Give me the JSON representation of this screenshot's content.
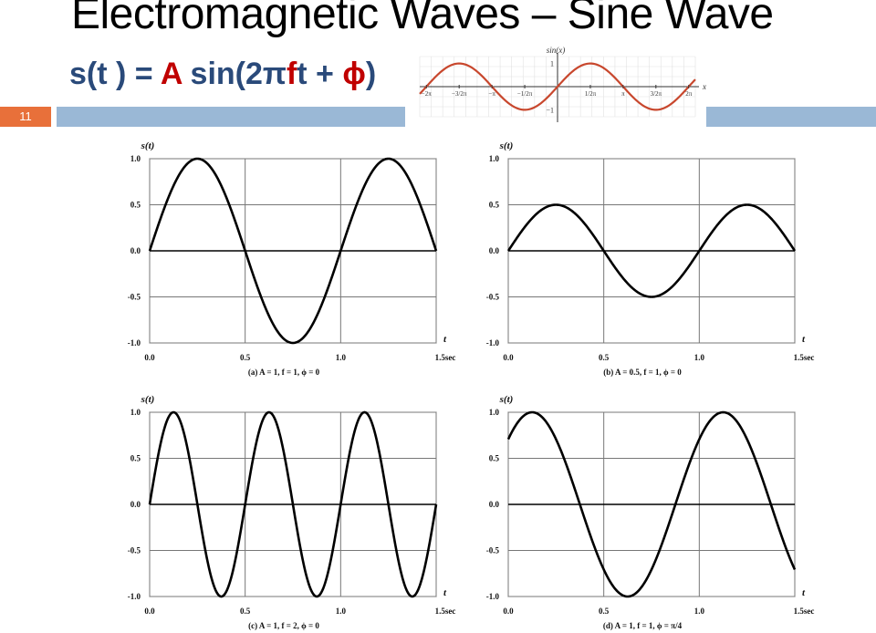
{
  "slide": {
    "title": "Electromagnetic Waves – Sine Wave",
    "formula_parts": [
      "s(t ) = ",
      "A",
      " sin(2π",
      "f",
      "t + ",
      "ϕ",
      ")"
    ],
    "slide_number": "11",
    "colors": {
      "accent_band": "#9ab8d6",
      "slide_number_bg": "#e8703a",
      "formula_blue": "#2a4a7a",
      "formula_red": "#c00000",
      "inset_curve": "#c8472d"
    }
  },
  "chart_data": [
    {
      "id": "inset",
      "type": "line",
      "function": "sin",
      "ylabel": "sin(x)",
      "xlabel": "x",
      "xlim": [
        -6.6,
        6.6
      ],
      "ylim": [
        -1.3,
        1.3
      ],
      "x_tick_labels": [
        "−2π",
        "−3/2π",
        "−π",
        "−1/2π",
        "1/2π",
        "π",
        "3/2π",
        "2π"
      ],
      "x_tick_values": [
        -6.2832,
        -4.7124,
        -3.1416,
        -1.5708,
        1.5708,
        3.1416,
        4.7124,
        6.2832
      ],
      "y_tick_labels": [
        "1",
        "−1"
      ],
      "y_tick_values": [
        1,
        -1
      ]
    },
    {
      "id": "a",
      "type": "line",
      "ylabel": "s(t)",
      "xlabel": "t",
      "caption": "(a) A = 1, f = 1, ϕ = 0",
      "params": {
        "A": 1,
        "f": 1,
        "phi": 0
      },
      "xlim": [
        0,
        1.5
      ],
      "ylim": [
        -1.0,
        1.0
      ],
      "x_tick_labels": [
        "0.0",
        "0.5",
        "1.0",
        "1.5sec"
      ],
      "y_tick_labels": [
        "1.0",
        "0.5",
        "0.0",
        "-0.5",
        "-1.0"
      ],
      "grid": true
    },
    {
      "id": "b",
      "type": "line",
      "ylabel": "s(t)",
      "xlabel": "t",
      "caption": "(b) A = 0.5, f = 1, ϕ = 0",
      "params": {
        "A": 0.5,
        "f": 1,
        "phi": 0
      },
      "xlim": [
        0,
        1.5
      ],
      "ylim": [
        -1.0,
        1.0
      ],
      "x_tick_labels": [
        "0.0",
        "0.5",
        "1.0",
        "1.5sec"
      ],
      "y_tick_labels": [
        "1.0",
        "0.5",
        "0.0",
        "-0.5",
        "-1.0"
      ],
      "grid": true
    },
    {
      "id": "c",
      "type": "line",
      "ylabel": "s(t)",
      "xlabel": "t",
      "caption": "(c) A = 1, f = 2, ϕ = 0",
      "params": {
        "A": 1,
        "f": 2,
        "phi": 0
      },
      "xlim": [
        0,
        1.5
      ],
      "ylim": [
        -1.0,
        1.0
      ],
      "x_tick_labels": [
        "0.0",
        "0.5",
        "1.0",
        "1.5sec"
      ],
      "y_tick_labels": [
        "1.0",
        "0.5",
        "0.0",
        "-0.5",
        "-1.0"
      ],
      "grid": true
    },
    {
      "id": "d",
      "type": "line",
      "ylabel": "s(t)",
      "xlabel": "t",
      "caption": "(d) A = 1, f = 1, ϕ = π/4",
      "params": {
        "A": 1,
        "f": 1,
        "phi": 0.7854
      },
      "xlim": [
        0,
        1.5
      ],
      "ylim": [
        -1.0,
        1.0
      ],
      "x_tick_labels": [
        "0.0",
        "0.5",
        "1.0",
        "1.5sec"
      ],
      "y_tick_labels": [
        "1.0",
        "0.5",
        "0.0",
        "-0.5",
        "-1.0"
      ],
      "grid": true
    }
  ]
}
